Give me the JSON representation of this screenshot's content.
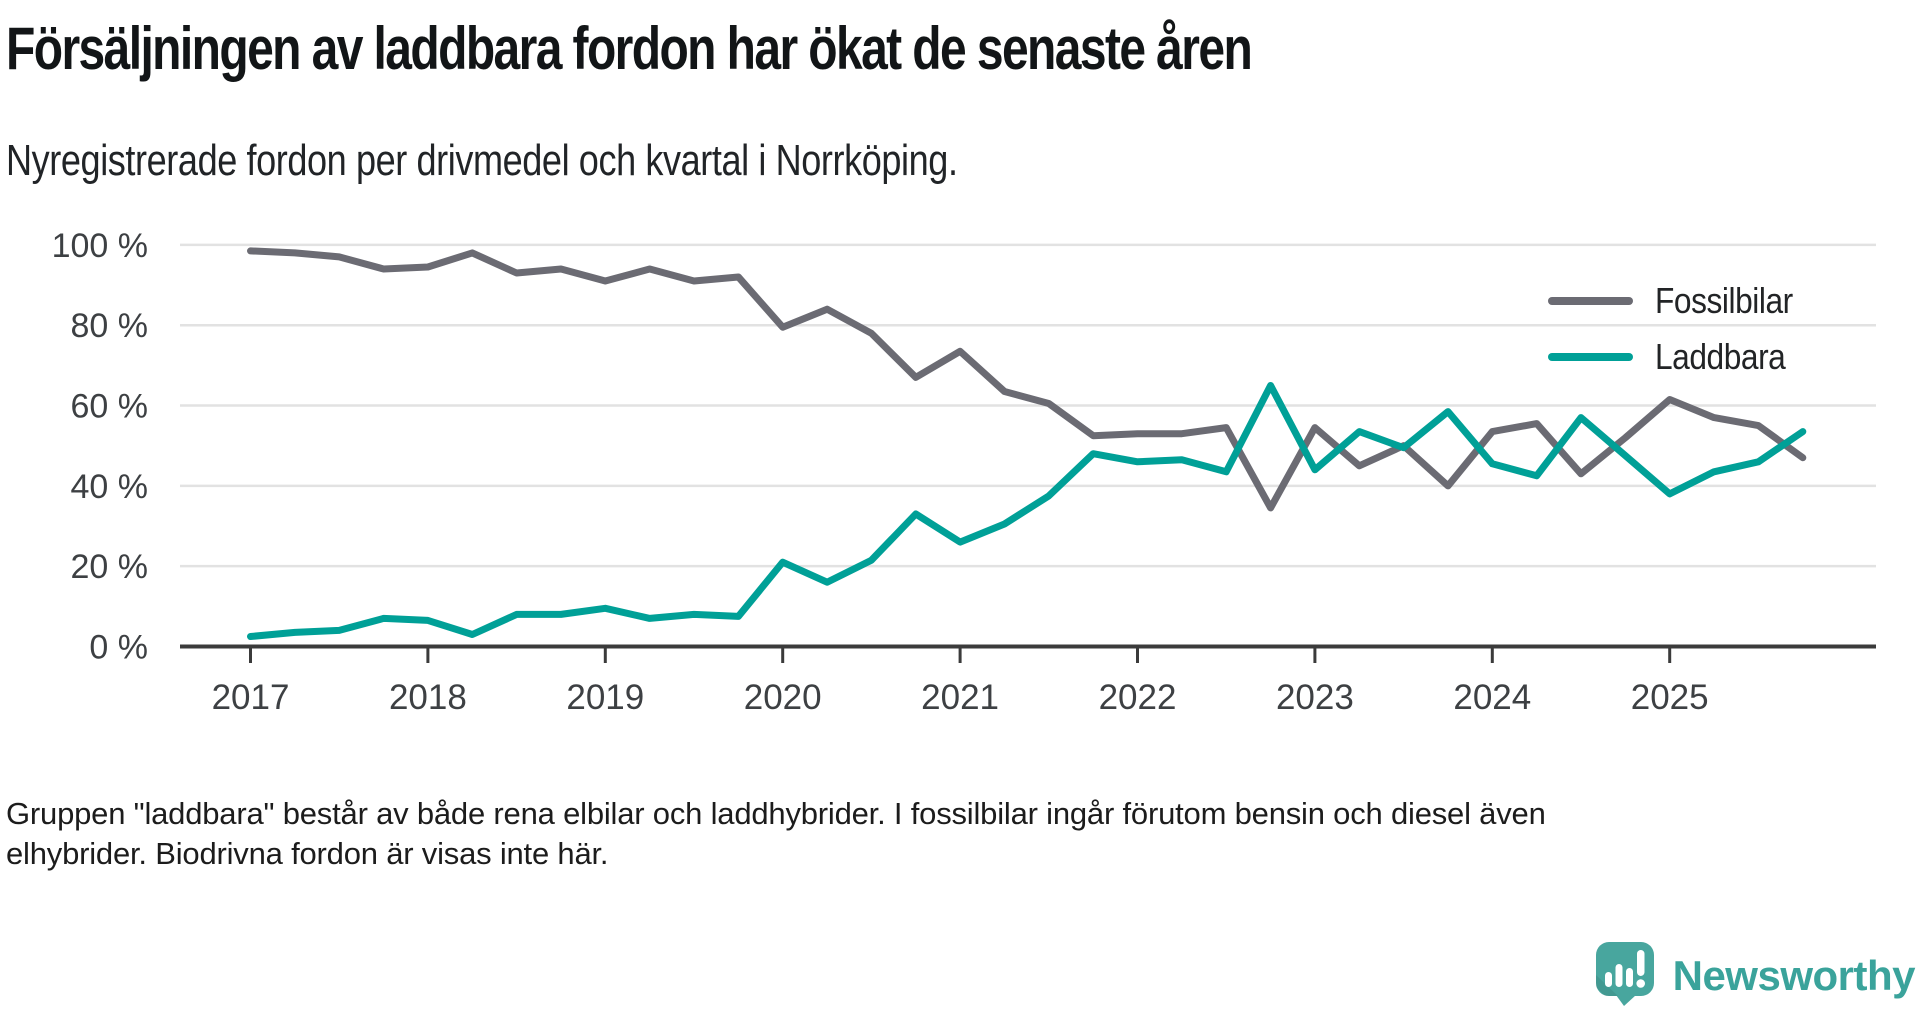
{
  "header": {
    "title": "Försäljningen av laddbara fordon har ökat de senaste åren",
    "subtitle": "Nyregistrerade fordon per drivmedel och kvartal i Norrköping."
  },
  "footnote": {
    "line1": "Gruppen \"laddbara\" består av både rena elbilar och laddhybrider. I fossilbilar ingår förutom bensin och diesel även",
    "line2": "elhybrider. Biodrivna fordon är visas inte här."
  },
  "logo": {
    "text": "Newsworthy",
    "mark_icon": "speech-bubble-bar-chart-icon",
    "mark_color": "#48a69e",
    "text_color": "#3aa39b"
  },
  "colors": {
    "background": "#ffffff",
    "gridline": "#e2e2e2",
    "axis": "#3b3b3b",
    "tick_label": "#3d4043",
    "fossil": "#6b6b73",
    "laddbara": "#00a097"
  },
  "chart_data": {
    "type": "line",
    "title": "Försäljningen av laddbara fordon har ökat de senaste åren",
    "subtitle": "Nyregistrerade fordon per drivmedel och kvartal i Norrköping.",
    "frequency": "quarterly",
    "x_start": "2017-Q1",
    "x_end": "2025-Q4",
    "x_year_ticks": [
      2017,
      2018,
      2019,
      2020,
      2021,
      2022,
      2023,
      2024,
      2025
    ],
    "ylim": [
      0,
      100
    ],
    "grid": "horizontal",
    "legend_position": "top-right",
    "y_ticks": [
      {
        "value": 0,
        "label": "0 %"
      },
      {
        "value": 20,
        "label": "20 %"
      },
      {
        "value": 40,
        "label": "40 %"
      },
      {
        "value": 60,
        "label": "60 %"
      },
      {
        "value": 80,
        "label": "80 %"
      },
      {
        "value": 100,
        "label": "100 %"
      }
    ],
    "series": [
      {
        "name": "Fossilbilar",
        "color": "#6b6b73",
        "values": [
          98.5,
          98,
          97,
          94,
          94.5,
          98,
          93,
          94,
          91,
          94,
          91,
          92,
          79.5,
          84,
          78,
          67,
          73.5,
          63.5,
          60.5,
          52.5,
          53,
          53,
          54.5,
          34.5,
          54.5,
          45,
          50,
          40,
          53.5,
          55.5,
          43,
          52,
          61.5,
          57,
          55,
          47
        ]
      },
      {
        "name": "Laddbara",
        "color": "#00a097",
        "values": [
          2.5,
          3.5,
          4,
          7,
          6.5,
          3,
          8,
          8,
          9.5,
          7,
          8,
          7.5,
          21,
          16,
          21.5,
          33,
          26,
          30.5,
          37.5,
          48,
          46,
          46.5,
          43.5,
          65,
          44,
          53.5,
          49.5,
          58.5,
          45.5,
          42.5,
          57,
          47.5,
          38,
          43.5,
          46,
          53.5
        ]
      }
    ]
  }
}
